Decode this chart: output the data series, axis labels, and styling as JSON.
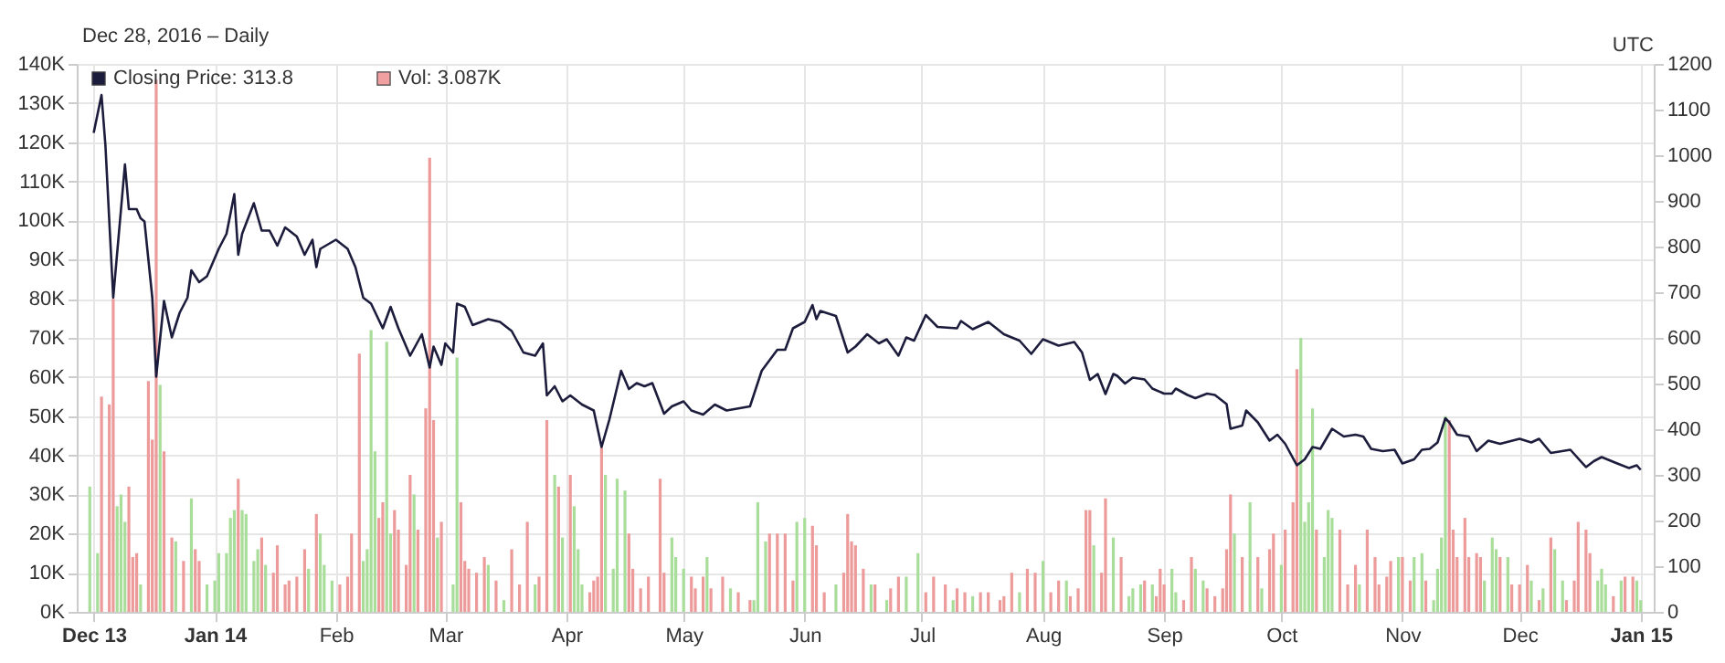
{
  "chart_data": {
    "type": "bar",
    "subtitle": "Dec 28, 2016 – Daily",
    "annotations": [
      "UTC"
    ],
    "xlim": [
      "2013-11-29",
      "2015-01-02"
    ],
    "xticks": [
      {
        "value": "2013-12-01",
        "label": "Dec 13"
      },
      {
        "value": "2014-01-01",
        "label": "Jan 14"
      },
      {
        "value": "2014-02-01",
        "label": "Feb"
      },
      {
        "value": "2014-03-01",
        "label": "Mar"
      },
      {
        "value": "2014-04-01",
        "label": "Apr"
      },
      {
        "value": "2014-05-01",
        "label": "May"
      },
      {
        "value": "2014-06-01",
        "label": "Jun"
      },
      {
        "value": "2014-07-01",
        "label": "Jul"
      },
      {
        "value": "2014-08-01",
        "label": "Aug"
      },
      {
        "value": "2014-09-01",
        "label": "Sep"
      },
      {
        "value": "2014-10-01",
        "label": "Oct"
      },
      {
        "value": "2014-11-01",
        "label": "Nov"
      },
      {
        "value": "2014-12-01",
        "label": "Dec"
      },
      {
        "value": "2015-01-01",
        "label": "Jan 15"
      }
    ],
    "ylim": [
      0,
      140000
    ],
    "yticks": [
      {
        "value": 0,
        "label": "0K"
      },
      {
        "value": 10000,
        "label": "10K"
      },
      {
        "value": 20000,
        "label": "20K"
      },
      {
        "value": 30000,
        "label": "30K"
      },
      {
        "value": 40000,
        "label": "40K"
      },
      {
        "value": 50000,
        "label": "50K"
      },
      {
        "value": 60000,
        "label": "60K"
      },
      {
        "value": 70000,
        "label": "70K"
      },
      {
        "value": 80000,
        "label": "80K"
      },
      {
        "value": 90000,
        "label": "90K"
      },
      {
        "value": 100000,
        "label": "100K"
      },
      {
        "value": 110000,
        "label": "110K"
      },
      {
        "value": 120000,
        "label": "120K"
      },
      {
        "value": 130000,
        "label": "130K"
      },
      {
        "value": 140000,
        "label": "140K"
      }
    ],
    "y2lim": [
      0,
      1200
    ],
    "y2ticks": [
      0,
      100,
      200,
      300,
      400,
      500,
      600,
      700,
      800,
      900,
      1000,
      1100,
      1200
    ],
    "grid": true,
    "legend": "top left",
    "series": [
      {
        "name": "Vol: 3.087K",
        "color": "#f0a0a0",
        "x": [
          "2013-11-30",
          "2013-12-02",
          "2013-12-03",
          "2013-12-05",
          "2013-12-06",
          "2013-12-07",
          "2013-12-08",
          "2013-12-09",
          "2013-12-10",
          "2013-12-11",
          "2013-12-12",
          "2013-12-13",
          "2013-12-15",
          "2013-12-16",
          "2013-12-17",
          "2013-12-18",
          "2013-12-19",
          "2013-12-21",
          "2013-12-22",
          "2013-12-24",
          "2013-12-26",
          "2013-12-27",
          "2013-12-28",
          "2013-12-30",
          "2014-01-01",
          "2014-01-02",
          "2014-01-04",
          "2014-01-05",
          "2014-01-06",
          "2014-01-07",
          "2014-01-08",
          "2014-01-09",
          "2014-01-11",
          "2014-01-12",
          "2014-01-13",
          "2014-01-14",
          "2014-01-16",
          "2014-01-17",
          "2014-01-19",
          "2014-01-20",
          "2014-01-22",
          "2014-01-24",
          "2014-01-25",
          "2014-01-27",
          "2014-01-28",
          "2014-01-29",
          "2014-01-31",
          "2014-02-02",
          "2014-02-04",
          "2014-02-05",
          "2014-02-07",
          "2014-02-08",
          "2014-02-09",
          "2014-02-10",
          "2014-02-11",
          "2014-02-12",
          "2014-02-13",
          "2014-02-14",
          "2014-02-15",
          "2014-02-16",
          "2014-02-17",
          "2014-02-19",
          "2014-02-20",
          "2014-02-21",
          "2014-02-22",
          "2014-02-24",
          "2014-02-25",
          "2014-02-26",
          "2014-02-27",
          "2014-02-28",
          "2014-03-03",
          "2014-03-04",
          "2014-03-05",
          "2014-03-06",
          "2014-03-07",
          "2014-03-09",
          "2014-03-11",
          "2014-03-12",
          "2014-03-14",
          "2014-03-16",
          "2014-03-18",
          "2014-03-20",
          "2014-03-22",
          "2014-03-24",
          "2014-03-25",
          "2014-03-27",
          "2014-03-29",
          "2014-03-30",
          "2014-03-31",
          "2014-04-02",
          "2014-04-03",
          "2014-04-04",
          "2014-04-05",
          "2014-04-07",
          "2014-04-08",
          "2014-04-09",
          "2014-04-10",
          "2014-04-11",
          "2014-04-13",
          "2014-04-14",
          "2014-04-16",
          "2014-04-17",
          "2014-04-18",
          "2014-04-20",
          "2014-04-22",
          "2014-04-25",
          "2014-04-26",
          "2014-04-28",
          "2014-04-29",
          "2014-05-01",
          "2014-05-03",
          "2014-05-04",
          "2014-05-06",
          "2014-05-07",
          "2014-05-08",
          "2014-05-11",
          "2014-05-13",
          "2014-05-15",
          "2014-05-18",
          "2014-05-19",
          "2014-05-20",
          "2014-05-22",
          "2014-05-23",
          "2014-05-25",
          "2014-05-27",
          "2014-05-29",
          "2014-05-30",
          "2014-06-01",
          "2014-06-03",
          "2014-06-04",
          "2014-06-06",
          "2014-06-09",
          "2014-06-11",
          "2014-06-12",
          "2014-06-13",
          "2014-06-14",
          "2014-06-16",
          "2014-06-18",
          "2014-06-19",
          "2014-06-22",
          "2014-06-23",
          "2014-06-25",
          "2014-06-27",
          "2014-06-30",
          "2014-07-02",
          "2014-07-04",
          "2014-07-07",
          "2014-07-09",
          "2014-07-10",
          "2014-07-12",
          "2014-07-14",
          "2014-07-16",
          "2014-07-18",
          "2014-07-21",
          "2014-07-22",
          "2014-07-24",
          "2014-07-26",
          "2014-07-28",
          "2014-07-30",
          "2014-08-01",
          "2014-08-03",
          "2014-08-05",
          "2014-08-07",
          "2014-08-08",
          "2014-08-10",
          "2014-08-12",
          "2014-08-13",
          "2014-08-14",
          "2014-08-16",
          "2014-08-17",
          "2014-08-19",
          "2014-08-21",
          "2014-08-23",
          "2014-08-24",
          "2014-08-26",
          "2014-08-27",
          "2014-08-29",
          "2014-08-30",
          "2014-08-31",
          "2014-09-01",
          "2014-09-03",
          "2014-09-04",
          "2014-09-06",
          "2014-09-08",
          "2014-09-09",
          "2014-09-11",
          "2014-09-12",
          "2014-09-14",
          "2014-09-16",
          "2014-09-17",
          "2014-09-18",
          "2014-09-19",
          "2014-09-21",
          "2014-09-23",
          "2014-09-25",
          "2014-09-26",
          "2014-09-28",
          "2014-09-29",
          "2014-10-01",
          "2014-10-02",
          "2014-10-04",
          "2014-10-05",
          "2014-10-06",
          "2014-10-07",
          "2014-10-08",
          "2014-10-09",
          "2014-10-10",
          "2014-10-12",
          "2014-10-13",
          "2014-10-14",
          "2014-10-16",
          "2014-10-18",
          "2014-10-20",
          "2014-10-21",
          "2014-10-23",
          "2014-10-25",
          "2014-10-26",
          "2014-10-28",
          "2014-10-29",
          "2014-10-31",
          "2014-11-01",
          "2014-11-03",
          "2014-11-04",
          "2014-11-06",
          "2014-11-07",
          "2014-11-09",
          "2014-11-10",
          "2014-11-11",
          "2014-11-12",
          "2014-11-13",
          "2014-11-14",
          "2014-11-15",
          "2014-11-17",
          "2014-11-18",
          "2014-11-20",
          "2014-11-21",
          "2014-11-22",
          "2014-11-24",
          "2014-11-25",
          "2014-11-26",
          "2014-11-28",
          "2014-11-29",
          "2014-12-01",
          "2014-12-03",
          "2014-12-04",
          "2014-12-06",
          "2014-12-07",
          "2014-12-09",
          "2014-12-10",
          "2014-12-12",
          "2014-12-13",
          "2014-12-15",
          "2014-12-16",
          "2014-12-18",
          "2014-12-19",
          "2014-12-21",
          "2014-12-22",
          "2014-12-23",
          "2014-12-25",
          "2014-12-27",
          "2014-12-28",
          "2014-12-30",
          "2014-12-31",
          "2015-01-01"
        ],
        "values": [
          32000,
          15000,
          55000,
          53000,
          80000,
          27000,
          30000,
          23000,
          32000,
          14000,
          15000,
          7000,
          59000,
          44000,
          136000,
          58000,
          41000,
          19000,
          18000,
          13000,
          29000,
          16000,
          13000,
          7000,
          8000,
          15000,
          15000,
          24000,
          26000,
          34000,
          26000,
          25000,
          13000,
          16000,
          19000,
          12000,
          10000,
          17000,
          7000,
          8000,
          9000,
          16000,
          11000,
          25000,
          20000,
          12000,
          8000,
          7000,
          9000,
          20000,
          66000,
          13000,
          16000,
          72000,
          41000,
          24000,
          28000,
          69000,
          20000,
          26000,
          21000,
          12000,
          35000,
          30000,
          21000,
          52000,
          116000,
          49000,
          19000,
          23000,
          7000,
          65000,
          28000,
          13000,
          11000,
          10000,
          14000,
          12000,
          8000,
          3000,
          16000,
          7000,
          23000,
          7000,
          9000,
          49000,
          35000,
          32000,
          19000,
          35000,
          27000,
          16000,
          7000,
          5000,
          8000,
          9000,
          42000,
          35000,
          11000,
          34000,
          31000,
          20000,
          11000,
          6000,
          9000,
          34000,
          10000,
          19000,
          14000,
          11000,
          9000,
          6000,
          9000,
          14000,
          6000,
          9000,
          6000,
          5000,
          3000,
          3000,
          28000,
          18000,
          20000,
          20000,
          20000,
          8000,
          23000,
          24000,
          22000,
          17000,
          5000,
          7000,
          10000,
          25000,
          18000,
          17000,
          11000,
          7000,
          7000,
          3000,
          6000,
          9000,
          9000,
          15000,
          5000,
          9000,
          7000,
          3000,
          6000,
          5000,
          4000,
          5000,
          5000,
          3000,
          4000,
          10000,
          5000,
          11000,
          10000,
          13000,
          5000,
          8000,
          8000,
          4000,
          6000,
          26000,
          26000,
          17000,
          10000,
          29000,
          19000,
          14000,
          4000,
          6000,
          7000,
          8000,
          7000,
          4000,
          11000,
          7000,
          11000,
          5000,
          3000,
          14000,
          11000,
          8000,
          6000,
          4000,
          6000,
          16000,
          30000,
          20000,
          14000,
          28000,
          14000,
          6000,
          16000,
          20000,
          12000,
          21000,
          28000,
          62000,
          70000,
          23000,
          28000,
          52000,
          21000,
          14000,
          26000,
          24000,
          21000,
          7000,
          12000,
          7000,
          21000,
          14000,
          7000,
          9000,
          13000,
          14000,
          14000,
          8000,
          14000,
          15000,
          8000,
          3000,
          11000,
          19000,
          50000,
          49000,
          21000,
          14000,
          24000,
          14000,
          15000,
          14000,
          8000,
          19000,
          16000,
          14000,
          14000,
          7000,
          7000,
          12000,
          8000,
          3000,
          6000,
          19000,
          16000,
          8000,
          3000,
          8000,
          23000,
          21000,
          15000,
          8000,
          11000,
          7000,
          4000,
          8000,
          9000,
          9000,
          8000,
          3000
        ],
        "colors": [
          "#a8dd9a",
          "#a8dd9a",
          "#ec9a9a",
          "#ec9a9a",
          "#ec9a9a",
          "#a8dd9a",
          "#a8dd9a",
          "#a8dd9a",
          "#ec9a9a",
          "#ec9a9a",
          "#ec9a9a",
          "#a8dd9a",
          "#ec9a9a",
          "#ec9a9a",
          "#ec9a9a",
          "#a8dd9a",
          "#ec9a9a",
          "#ec9a9a",
          "#a8dd9a",
          "#ec9a9a",
          "#a8dd9a",
          "#ec9a9a",
          "#ec9a9a",
          "#a8dd9a",
          "#a8dd9a",
          "#a8dd9a",
          "#a8dd9a",
          "#a8dd9a",
          "#a8dd9a",
          "#ec9a9a",
          "#a8dd9a",
          "#a8dd9a",
          "#a8dd9a",
          "#a8dd9a",
          "#ec9a9a",
          "#a8dd9a",
          "#ec9a9a",
          "#ec9a9a",
          "#ec9a9a",
          "#ec9a9a",
          "#ec9a9a",
          "#ec9a9a",
          "#a8dd9a",
          "#ec9a9a",
          "#a8dd9a",
          "#a8dd9a",
          "#a8dd9a",
          "#ec9a9a",
          "#ec9a9a",
          "#ec9a9a",
          "#ec9a9a",
          "#a8dd9a",
          "#a8dd9a",
          "#a8dd9a",
          "#a8dd9a",
          "#ec9a9a",
          "#ec9a9a",
          "#a8dd9a",
          "#a8dd9a",
          "#ec9a9a",
          "#ec9a9a",
          "#ec9a9a",
          "#ec9a9a",
          "#a8dd9a",
          "#ec9a9a",
          "#ec9a9a",
          "#ec9a9a",
          "#ec9a9a",
          "#a8dd9a",
          "#ec9a9a",
          "#a8dd9a",
          "#a8dd9a",
          "#ec9a9a",
          "#ec9a9a",
          "#ec9a9a",
          "#ec9a9a",
          "#ec9a9a",
          "#a8dd9a",
          "#ec9a9a",
          "#a8dd9a",
          "#ec9a9a",
          "#ec9a9a",
          "#ec9a9a",
          "#a8dd9a",
          "#ec9a9a",
          "#ec9a9a",
          "#a8dd9a",
          "#ec9a9a",
          "#a8dd9a",
          "#ec9a9a",
          "#a8dd9a",
          "#a8dd9a",
          "#a8dd9a",
          "#ec9a9a",
          "#ec9a9a",
          "#ec9a9a",
          "#ec9a9a",
          "#a8dd9a",
          "#a8dd9a",
          "#a8dd9a",
          "#a8dd9a",
          "#ec9a9a",
          "#ec9a9a",
          "#ec9a9a",
          "#ec9a9a",
          "#ec9a9a",
          "#ec9a9a",
          "#a8dd9a",
          "#a8dd9a",
          "#a8dd9a",
          "#ec9a9a",
          "#ec9a9a",
          "#ec9a9a",
          "#a8dd9a",
          "#ec9a9a",
          "#ec9a9a",
          "#a8dd9a",
          "#ec9a9a",
          "#ec9a9a",
          "#a8dd9a",
          "#a8dd9a",
          "#a8dd9a",
          "#ec9a9a",
          "#ec9a9a",
          "#ec9a9a",
          "#ec9a9a",
          "#a8dd9a",
          "#a8dd9a",
          "#ec9a9a",
          "#ec9a9a",
          "#ec9a9a",
          "#a8dd9a",
          "#ec9a9a",
          "#ec9a9a",
          "#ec9a9a",
          "#ec9a9a",
          "#ec9a9a",
          "#a8dd9a",
          "#ec9a9a",
          "#a8dd9a",
          "#ec9a9a",
          "#ec9a9a",
          "#a8dd9a",
          "#a8dd9a",
          "#ec9a9a",
          "#ec9a9a",
          "#ec9a9a",
          "#a8dd9a",
          "#ec9a9a",
          "#ec9a9a",
          "#a8dd9a",
          "#ec9a9a",
          "#ec9a9a",
          "#ec9a9a",
          "#ec9a9a",
          "#ec9a9a",
          "#a8dd9a",
          "#ec9a9a",
          "#ec9a9a",
          "#a8dd9a",
          "#ec9a9a",
          "#ec9a9a",
          "#a8dd9a",
          "#ec9a9a",
          "#ec9a9a",
          "#ec9a9a",
          "#ec9a9a",
          "#a8dd9a",
          "#ec9a9a",
          "#ec9a9a",
          "#a8dd9a",
          "#ec9a9a",
          "#a8dd9a",
          "#a8dd9a",
          "#a8dd9a",
          "#ec9a9a",
          "#a8dd9a",
          "#ec9a9a",
          "#ec9a9a",
          "#ec9a9a",
          "#a8dd9a",
          "#a8dd9a",
          "#ec9a9a",
          "#ec9a9a",
          "#a8dd9a",
          "#a8dd9a",
          "#ec9a9a",
          "#ec9a9a",
          "#ec9a9a",
          "#ec9a9a",
          "#ec9a9a",
          "#a8dd9a",
          "#ec9a9a",
          "#a8dd9a",
          "#ec9a9a",
          "#a8dd9a",
          "#ec9a9a",
          "#ec9a9a",
          "#a8dd9a",
          "#ec9a9a",
          "#ec9a9a",
          "#ec9a9a",
          "#a8dd9a",
          "#a8dd9a",
          "#a8dd9a",
          "#a8dd9a",
          "#ec9a9a",
          "#a8dd9a",
          "#a8dd9a",
          "#a8dd9a",
          "#ec9a9a",
          "#ec9a9a",
          "#ec9a9a",
          "#a8dd9a",
          "#ec9a9a",
          "#ec9a9a",
          "#ec9a9a",
          "#ec9a9a",
          "#ec9a9a",
          "#a8dd9a",
          "#ec9a9a",
          "#ec9a9a",
          "#a8dd9a",
          "#a8dd9a",
          "#ec9a9a",
          "#a8dd9a",
          "#a8dd9a",
          "#a8dd9a",
          "#a8dd9a",
          "#ec9a9a",
          "#ec9a9a",
          "#ec9a9a",
          "#ec9a9a",
          "#ec9a9a",
          "#ec9a9a",
          "#ec9a9a",
          "#a8dd9a",
          "#a8dd9a",
          "#a8dd9a",
          "#ec9a9a",
          "#a8dd9a",
          "#ec9a9a",
          "#ec9a9a",
          "#ec9a9a",
          "#a8dd9a",
          "#ec9a9a",
          "#a8dd9a",
          "#ec9a9a",
          "#a8dd9a",
          "#a8dd9a",
          "#ec9a9a",
          "#ec9a9a",
          "#ec9a9a",
          "#ec9a9a",
          "#ec9a9a",
          "#a8dd9a",
          "#a8dd9a",
          "#a8dd9a",
          "#ec9a9a",
          "#a8dd9a",
          "#ec9a9a",
          "#ec9a9a",
          "#a8dd9a",
          "#a8dd9a"
        ]
      },
      {
        "name": "Closing Price: 313.8",
        "type": "line",
        "axis": "y2",
        "color": "#1c1c3c",
        "x": [
          "2013-12-01",
          "2013-12-03",
          "2013-12-04",
          "2013-12-06",
          "2013-12-09",
          "2013-12-10",
          "2013-12-12",
          "2013-12-13",
          "2013-12-14",
          "2013-12-16",
          "2013-12-17",
          "2013-12-19",
          "2013-12-21",
          "2013-12-23",
          "2013-12-25",
          "2013-12-26",
          "2013-12-28",
          "2013-12-30",
          "2014-01-02",
          "2014-01-04",
          "2014-01-06",
          "2014-01-07",
          "2014-01-08",
          "2014-01-11",
          "2014-01-13",
          "2014-01-15",
          "2014-01-17",
          "2014-01-19",
          "2014-01-22",
          "2014-01-24",
          "2014-01-26",
          "2014-01-27",
          "2014-01-28",
          "2014-02-01",
          "2014-02-04",
          "2014-02-06",
          "2014-02-08",
          "2014-02-10",
          "2014-02-13",
          "2014-02-15",
          "2014-02-17",
          "2014-02-20",
          "2014-02-23",
          "2014-02-25",
          "2014-02-26",
          "2014-02-28",
          "2014-03-01",
          "2014-03-03",
          "2014-03-04",
          "2014-03-06",
          "2014-03-08",
          "2014-03-12",
          "2014-03-15",
          "2014-03-18",
          "2014-03-21",
          "2014-03-24",
          "2014-03-26",
          "2014-03-27",
          "2014-03-29",
          "2014-03-31",
          "2014-04-02",
          "2014-04-05",
          "2014-04-08",
          "2014-04-10",
          "2014-04-12",
          "2014-04-15",
          "2014-04-17",
          "2014-04-19",
          "2014-04-21",
          "2014-04-23",
          "2014-04-26",
          "2014-04-28",
          "2014-05-01",
          "2014-05-03",
          "2014-05-06",
          "2014-05-09",
          "2014-05-12",
          "2014-05-18",
          "2014-05-21",
          "2014-05-25",
          "2014-05-27",
          "2014-05-29",
          "2014-06-01",
          "2014-06-03",
          "2014-06-04",
          "2014-06-05",
          "2014-06-09",
          "2014-06-12",
          "2014-06-14",
          "2014-06-17",
          "2014-06-20",
          "2014-06-22",
          "2014-06-25",
          "2014-06-27",
          "2014-06-29",
          "2014-07-02",
          "2014-07-05",
          "2014-07-10",
          "2014-07-11",
          "2014-07-14",
          "2014-07-18",
          "2014-07-22",
          "2014-07-26",
          "2014-07-29",
          "2014-08-01",
          "2014-08-05",
          "2014-08-09",
          "2014-08-11",
          "2014-08-13",
          "2014-08-15",
          "2014-08-17",
          "2014-08-19",
          "2014-08-20",
          "2014-08-22",
          "2014-08-24",
          "2014-08-27",
          "2014-08-29",
          "2014-09-01",
          "2014-09-03",
          "2014-09-04",
          "2014-09-07",
          "2014-09-09",
          "2014-09-12",
          "2014-09-14",
          "2014-09-17",
          "2014-09-18",
          "2014-09-21",
          "2014-09-22",
          "2014-09-25",
          "2014-09-28",
          "2014-09-30",
          "2014-10-02",
          "2014-10-05",
          "2014-10-07",
          "2014-10-09",
          "2014-10-11",
          "2014-10-14",
          "2014-10-17",
          "2014-10-20",
          "2014-10-22",
          "2014-10-24",
          "2014-10-27",
          "2014-10-30",
          "2014-11-01",
          "2014-11-04",
          "2014-11-06",
          "2014-11-08",
          "2014-11-10",
          "2014-11-12",
          "2014-11-13",
          "2014-11-15",
          "2014-11-18",
          "2014-11-20",
          "2014-11-23",
          "2014-11-26",
          "2014-12-01",
          "2014-12-04",
          "2014-12-06",
          "2014-12-09",
          "2014-12-14",
          "2014-12-18",
          "2014-12-20",
          "2014-12-22",
          "2014-12-26",
          "2014-12-29",
          "2014-12-31",
          "2015-01-01"
        ],
        "values": [
          1049,
          1132,
          1022,
          688,
          980,
          882,
          882,
          862,
          855,
          688,
          515,
          681,
          601,
          655,
          688,
          748,
          722,
          735,
          795,
          828,
          915,
          782,
          828,
          895,
          835,
          835,
          802,
          842,
          822,
          782,
          815,
          755,
          795,
          815,
          795,
          755,
          688,
          675,
          621,
          668,
          621,
          561,
          608,
          535,
          581,
          541,
          588,
          568,
          675,
          668,
          628,
          641,
          635,
          615,
          568,
          561,
          588,
          474,
          494,
          461,
          474,
          454,
          441,
          361,
          421,
          528,
          488,
          501,
          494,
          501,
          434,
          450,
          461,
          441,
          432,
          454,
          441,
          450,
          528,
          574,
          574,
          621,
          635,
          672,
          641,
          659,
          648,
          568,
          581,
          608,
          588,
          597,
          561,
          601,
          594,
          650,
          624,
          621,
          637,
          619,
          635,
          608,
          594,
          565,
          597,
          583,
          591,
          568,
          508,
          521,
          477,
          521,
          517,
          500,
          513,
          509,
          489,
          478,
          478,
          489,
          475,
          468,
          478,
          475,
          455,
          401,
          408,
          441,
          415,
          375,
          388,
          368,
          321,
          334,
          361,
          357,
          401,
          384,
          388,
          384,
          357,
          352,
          355,
          325,
          334,
          355,
          357,
          371,
          424,
          415,
          388,
          384,
          352,
          375,
          368,
          379,
          371,
          379,
          348,
          355,
          317,
          330,
          339,
          325,
          315,
          321,
          311
        ]
      }
    ]
  }
}
